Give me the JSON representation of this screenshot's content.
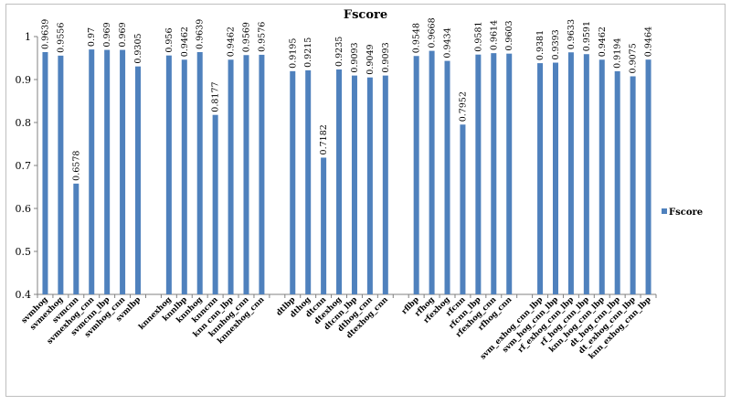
{
  "chart_data": {
    "type": "bar",
    "title": "Fscore",
    "xlabel": "",
    "ylabel": "",
    "ylim": [
      0.4,
      1.0
    ],
    "yticks": [
      0.4,
      0.5,
      0.6,
      0.7,
      0.8,
      0.9,
      1
    ],
    "grid": false,
    "legend": "right",
    "bar_color": "#4f81bd",
    "categories": [
      "svmhog",
      "svmexhog",
      "svmcnn",
      "svmexhog_cnn",
      "svmcnn_lbp",
      "svmhog_cnn",
      "svmlbp",
      "",
      "knnexhog",
      "knnlbp",
      "knnhog",
      "knncnn",
      "knn cnn_lbp",
      "knnhog_cnn",
      "knnexhog_cnn",
      "",
      "dtlbp",
      "dthog",
      "dtcnn",
      "dtexhog",
      "dtcnn_lbp",
      "dthog_cnn",
      "dtexhog_cnn",
      "",
      "rflbp",
      "rfhog",
      "rfexhog",
      "rfcnn",
      "rfcnn_lbp",
      "rfexhog_cnn",
      "rfhog_cnn",
      "",
      "svm_exhog_cnn_lbp",
      "svm_hog_cnn_lbp",
      "rf_exhog_cnn_lbp",
      "rf_hog_cnn_lbp",
      "knn_hog_cnn_lbp",
      "dt_hog_cnn_lbp",
      "dt_exhog_cnn_lbp",
      "knn_exhog_cnn_lbp"
    ],
    "series": [
      {
        "name": "Fscore",
        "values": [
          0.9639,
          0.9556,
          0.6578,
          0.97,
          0.969,
          0.969,
          0.9305,
          null,
          0.956,
          0.9462,
          0.9639,
          0.8177,
          0.9462,
          0.9569,
          0.9576,
          null,
          0.9195,
          0.9215,
          0.7182,
          0.9235,
          0.9093,
          0.9049,
          0.9093,
          null,
          0.9548,
          0.9668,
          0.9434,
          0.7952,
          0.9581,
          0.9614,
          0.9603,
          null,
          0.9381,
          0.9393,
          0.9633,
          0.9591,
          0.9462,
          0.9194,
          0.9075,
          0.9464
        ],
        "labels": [
          "0.9639",
          "0.9556",
          "0.6578",
          "0.97",
          "0.969",
          "0.969",
          "0.9305",
          "",
          "0.956",
          "0.9462",
          "0.9639",
          "0.8177",
          "0.9462",
          "0.9569",
          "0.9576",
          "",
          "0.9195",
          "0.9215",
          "0.7182",
          "0.9235",
          "0.9093",
          "0.9049",
          "0.9093",
          "",
          "0.9548",
          "0.9668",
          "0.9434",
          "0.7952",
          "0.9581",
          "0.9614",
          "0.9603",
          "",
          "0.9381",
          "0.9393",
          "0.9633",
          "0.9591",
          "0.9462",
          "0.9194",
          "0.9075",
          "0.9464"
        ]
      }
    ],
    "legend_entries": [
      "Fscore"
    ]
  }
}
